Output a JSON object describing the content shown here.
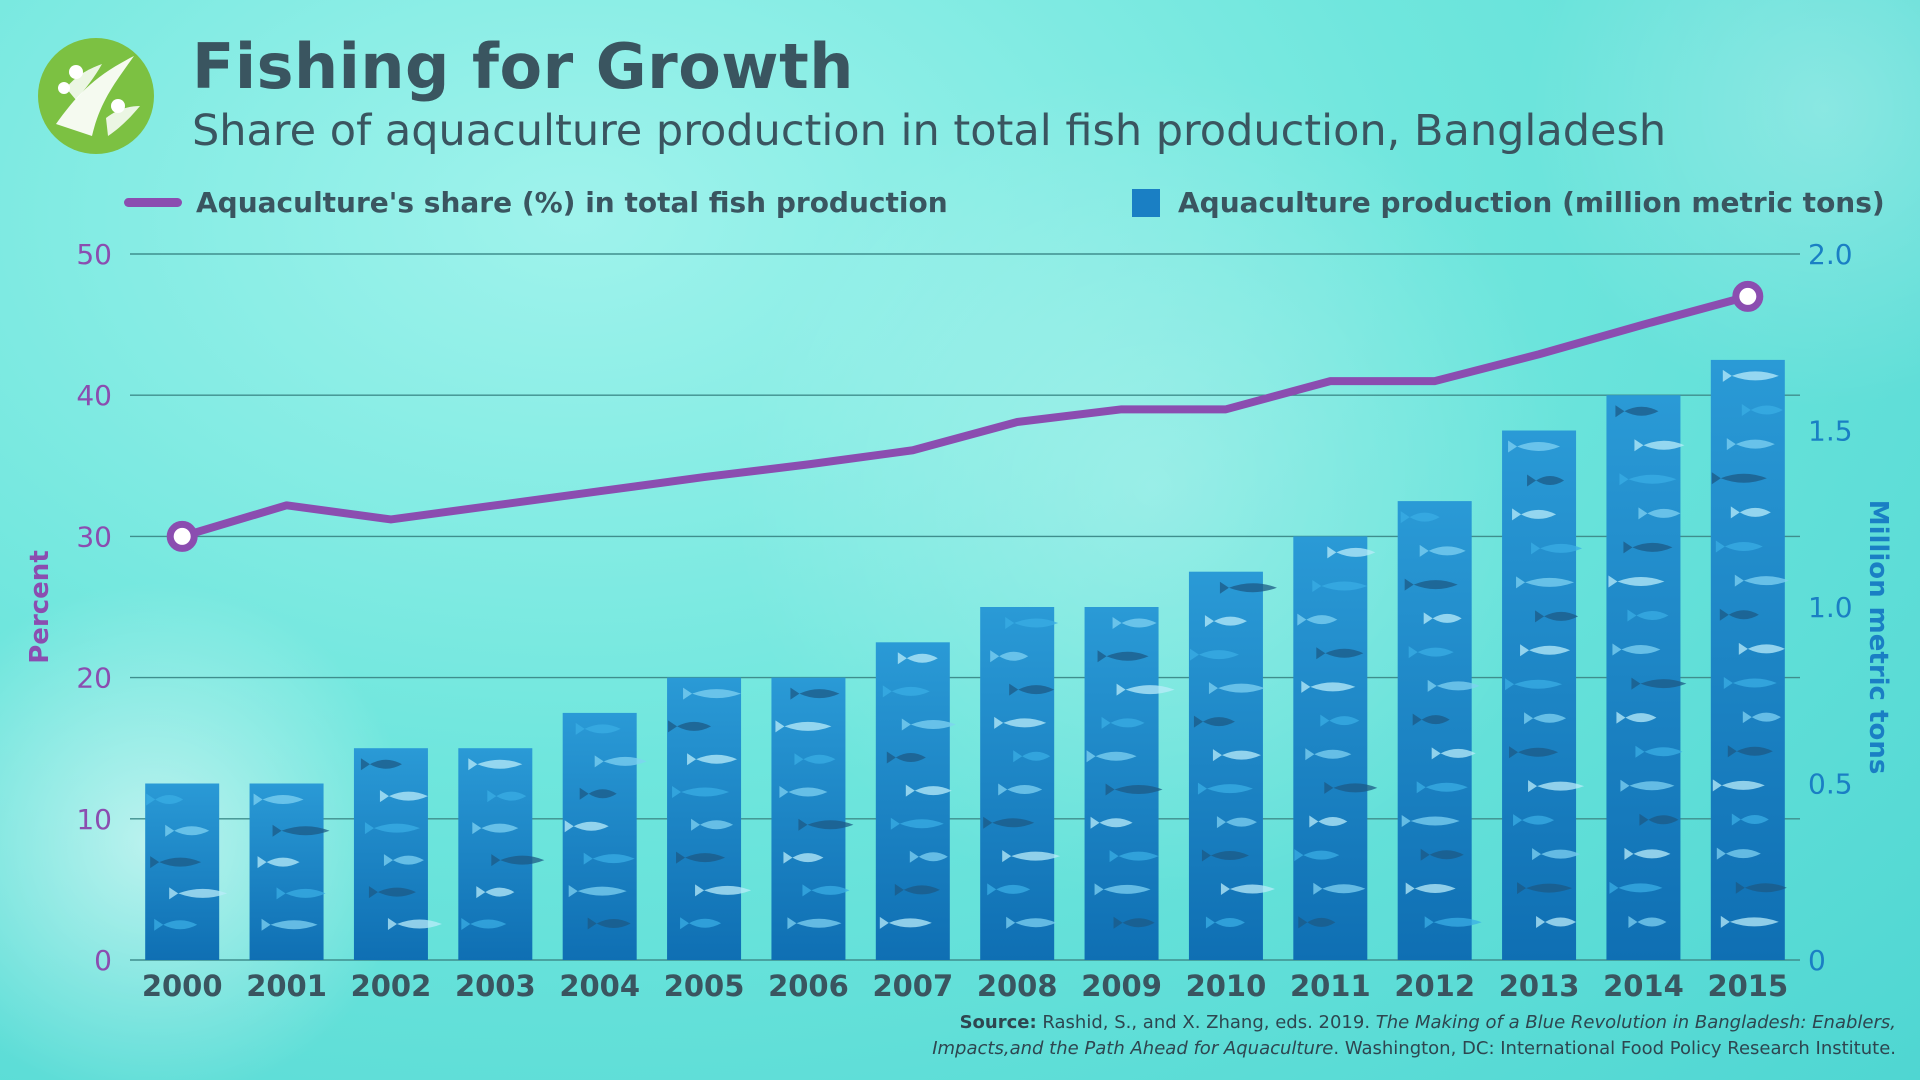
{
  "header": {
    "title": "Fishing for Growth",
    "subtitle": "Share of aquaculture production in total fish production, Bangladesh"
  },
  "legend": {
    "line_label": "Aquaculture's share (%) in total fish production",
    "bar_label": "Aquaculture production (million metric tons)"
  },
  "source": {
    "prefix": "Source:",
    "authors": " Rashid, S., and X. Zhang, eds. 2019. ",
    "book_title_1": "The Making of a Blue Revolution in Bangladesh: Enablers,",
    "book_title_2": "Impacts,and the Path Ahead for Aquaculture",
    "publisher": ". Washington, DC: International Food Policy Research Institute."
  },
  "colors": {
    "line": "#8b4db0",
    "bar": "#1a7fc4",
    "left_axis": "#8b4db0",
    "right_axis": "#1a7fc4",
    "text": "#3a5560",
    "grid": "#3f8e8d"
  },
  "chart_data": {
    "type": "bar",
    "categories": [
      "2000",
      "2001",
      "2002",
      "2003",
      "2004",
      "2005",
      "2006",
      "2007",
      "2008",
      "2009",
      "2010",
      "2011",
      "2012",
      "2013",
      "2014",
      "2015"
    ],
    "series": [
      {
        "name": "Aquaculture production (million metric tons)",
        "type": "bar",
        "axis": "right",
        "values": [
          0.5,
          0.5,
          0.6,
          0.6,
          0.7,
          0.8,
          0.8,
          0.9,
          1.0,
          1.0,
          1.1,
          1.2,
          1.3,
          1.5,
          1.6,
          1.7
        ]
      },
      {
        "name": "Aquaculture's share (%) in total fish production",
        "type": "line",
        "axis": "left",
        "values": [
          30,
          32.2,
          31.2,
          32.2,
          33.2,
          34.2,
          35.1,
          36.1,
          38.1,
          39,
          39,
          41,
          41,
          42.9,
          45,
          47
        ]
      }
    ],
    "left_axis": {
      "label": "Percent",
      "ylim": [
        0,
        50
      ],
      "ticks": [
        "0",
        "10",
        "20",
        "30",
        "40",
        "50"
      ]
    },
    "right_axis": {
      "label": "Million metric tons",
      "ylim": [
        0,
        2.0
      ],
      "ticks": [
        "0",
        "0.5",
        "1.0",
        "1.5",
        "2.0"
      ]
    },
    "grid": true,
    "legend_position": "top"
  }
}
